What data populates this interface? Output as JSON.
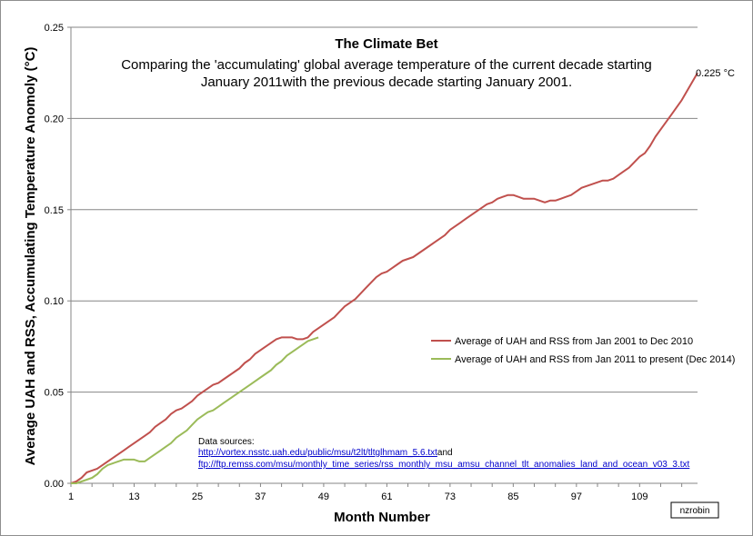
{
  "chart_data": {
    "type": "line",
    "title": "The Climate Bet",
    "subtitle_lines": [
      "Comparing the 'accumulating' global average temperature of the current decade starting",
      "January 2011with the previous decade starting January 2001."
    ],
    "xlabel": "Month Number",
    "ylabel": "Average UAH and RSS, Accumulating Temperature Anomoly (°C)",
    "xlim": [
      1,
      120
    ],
    "ylim": [
      0,
      0.25
    ],
    "x_ticks": [
      "1",
      "13",
      "25",
      "37",
      "49",
      "61",
      "73",
      "85",
      "97",
      "109"
    ],
    "y_ticks": [
      "0.00",
      "0.05",
      "0.10",
      "0.15",
      "0.20",
      "0.25"
    ],
    "grid": true,
    "legend_position": "right",
    "series": [
      {
        "name": "Average of UAH and RSS from Jan 2001 to Dec 2010",
        "color": "#c0504d",
        "x": [
          1,
          2,
          3,
          4,
          5,
          6,
          7,
          8,
          9,
          10,
          11,
          12,
          13,
          14,
          15,
          16,
          17,
          18,
          19,
          20,
          21,
          22,
          23,
          24,
          25,
          26,
          27,
          28,
          29,
          30,
          31,
          32,
          33,
          34,
          35,
          36,
          37,
          38,
          39,
          40,
          41,
          42,
          43,
          44,
          45,
          46,
          47,
          48,
          49,
          50,
          51,
          52,
          53,
          54,
          55,
          56,
          57,
          58,
          59,
          60,
          61,
          62,
          63,
          64,
          65,
          66,
          67,
          68,
          69,
          70,
          71,
          72,
          73,
          74,
          75,
          76,
          77,
          78,
          79,
          80,
          81,
          82,
          83,
          84,
          85,
          86,
          87,
          88,
          89,
          90,
          91,
          92,
          93,
          94,
          95,
          96,
          97,
          98,
          99,
          100,
          101,
          102,
          103,
          104,
          105,
          106,
          107,
          108,
          109,
          110,
          111,
          112,
          113,
          114,
          115,
          116,
          117,
          118,
          119,
          120
        ],
        "y": [
          0.0,
          0.001,
          0.003,
          0.006,
          0.007,
          0.008,
          0.01,
          0.012,
          0.014,
          0.016,
          0.018,
          0.02,
          0.022,
          0.024,
          0.026,
          0.028,
          0.031,
          0.033,
          0.035,
          0.038,
          0.04,
          0.041,
          0.043,
          0.045,
          0.048,
          0.05,
          0.052,
          0.054,
          0.055,
          0.057,
          0.059,
          0.061,
          0.063,
          0.066,
          0.068,
          0.071,
          0.073,
          0.075,
          0.077,
          0.079,
          0.08,
          0.08,
          0.08,
          0.079,
          0.079,
          0.08,
          0.083,
          0.085,
          0.087,
          0.089,
          0.091,
          0.094,
          0.097,
          0.099,
          0.101,
          0.104,
          0.107,
          0.11,
          0.113,
          0.115,
          0.116,
          0.118,
          0.12,
          0.122,
          0.123,
          0.124,
          0.126,
          0.128,
          0.13,
          0.132,
          0.134,
          0.136,
          0.139,
          0.141,
          0.143,
          0.145,
          0.147,
          0.149,
          0.151,
          0.153,
          0.154,
          0.156,
          0.157,
          0.158,
          0.158,
          0.157,
          0.156,
          0.156,
          0.156,
          0.155,
          0.154,
          0.155,
          0.155,
          0.156,
          0.157,
          0.158,
          0.16,
          0.162,
          0.163,
          0.164,
          0.165,
          0.166,
          0.166,
          0.167,
          0.169,
          0.171,
          0.173,
          0.176,
          0.179,
          0.181,
          0.185,
          0.19,
          0.194,
          0.198,
          0.202,
          0.206,
          0.21,
          0.215,
          0.22,
          0.225
        ]
      },
      {
        "name": "Average of UAH and RSS from Jan 2011 to present (Dec 2014)",
        "color": "#9bbb59",
        "x": [
          1,
          2,
          3,
          4,
          5,
          6,
          7,
          8,
          9,
          10,
          11,
          12,
          13,
          14,
          15,
          16,
          17,
          18,
          19,
          20,
          21,
          22,
          23,
          24,
          25,
          26,
          27,
          28,
          29,
          30,
          31,
          32,
          33,
          34,
          35,
          36,
          37,
          38,
          39,
          40,
          41,
          42,
          43,
          44,
          45,
          46,
          47,
          48
        ],
        "y": [
          0.0,
          0.0,
          0.001,
          0.002,
          0.003,
          0.005,
          0.008,
          0.01,
          0.011,
          0.012,
          0.013,
          0.013,
          0.013,
          0.012,
          0.012,
          0.014,
          0.016,
          0.018,
          0.02,
          0.022,
          0.025,
          0.027,
          0.029,
          0.032,
          0.035,
          0.037,
          0.039,
          0.04,
          0.042,
          0.044,
          0.046,
          0.048,
          0.05,
          0.052,
          0.054,
          0.056,
          0.058,
          0.06,
          0.062,
          0.065,
          0.067,
          0.07,
          0.072,
          0.074,
          0.076,
          0.078,
          0.079,
          0.08
        ]
      }
    ],
    "annotations": {
      "end_value": "0.225 °C",
      "sources_label": "Data sources:",
      "source_link_1": "http://vortex.nsstc.uah.edu/public/msu/t2lt/tltglhmam_5.6.txt",
      "source_and": "and",
      "source_link_2": "ftp://ftp.remss.com/msu/monthly_time_series/rss_monthly_msu_amsu_channel_tlt_anomalies_land_and_ocean_v03_3.txt",
      "author": "nzrobin"
    }
  }
}
